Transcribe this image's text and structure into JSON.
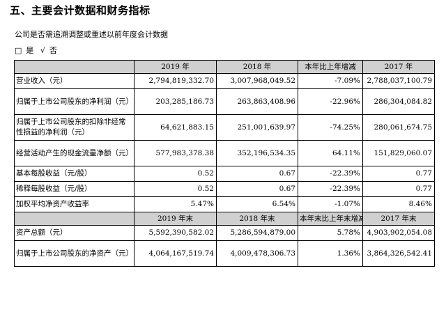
{
  "section_title": "五、主要会计数据和财务指标",
  "question": "公司是否需追溯调整或重述以前年度会计数据",
  "answer": {
    "yes_box": "□",
    "yes_label": "是",
    "no_mark": "√",
    "no_label": "否"
  },
  "header1": [
    "",
    "2019 年",
    "2018 年",
    "本年比上年增减",
    "2017 年"
  ],
  "rows1": [
    {
      "label": "营业收入（元）",
      "values": [
        "2,794,819,332.70",
        "3,007,968,049.52",
        "-7.09%",
        "2,788,037,100.79"
      ]
    },
    {
      "label": "归属于上市公司股东的净利润（元）",
      "values": [
        "203,285,186.73",
        "263,863,408.96",
        "-22.96%",
        "286,304,084.82"
      ]
    },
    {
      "label": "归属于上市公司股东的扣除非经常性损益的净利润（元）",
      "values": [
        "64,621,883.15",
        "251,001,639.97",
        "-74.25%",
        "280,061,674.75"
      ]
    },
    {
      "label": "经营活动产生的现金流量净额（元）",
      "values": [
        "577,983,378.38",
        "352,196,534.35",
        "64.11%",
        "151,829,060.07"
      ]
    },
    {
      "label": "基本每股收益（元/股）",
      "values": [
        "0.52",
        "0.67",
        "-22.39%",
        "0.77"
      ]
    },
    {
      "label": "稀释每股收益（元/股）",
      "values": [
        "0.52",
        "0.67",
        "-22.39%",
        "0.77"
      ]
    },
    {
      "label": "加权平均净资产收益率",
      "values": [
        "5.47%",
        "6.54%",
        "-1.07%",
        "8.46%"
      ]
    }
  ],
  "header2": [
    "",
    "2019 年末",
    "2018 年末",
    "本年末比上年末增减",
    "2017 年末"
  ],
  "rows2": [
    {
      "label": "资产总额（元）",
      "values": [
        "5,592,390,582.02",
        "5,286,594,879.00",
        "5.78%",
        "4,903,902,054.08"
      ]
    },
    {
      "label": "归属于上市公司股东的净资产（元）",
      "values": [
        "4,064,167,519.74",
        "4,009,478,306.73",
        "1.36%",
        "3,864,326,542.41"
      ]
    }
  ]
}
